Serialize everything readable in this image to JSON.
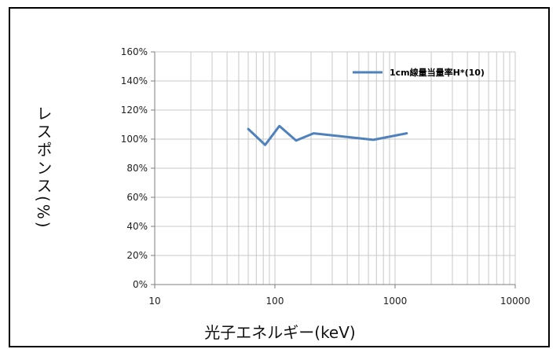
{
  "chart_data": {
    "type": "line",
    "xscale": "log",
    "xlim": [
      10,
      10000
    ],
    "ylim": [
      0,
      160
    ],
    "x_ticks": [
      "10",
      "100",
      "1000",
      "10000"
    ],
    "y_ticks": [
      "0%",
      "20%",
      "40%",
      "60%",
      "80%",
      "100%",
      "120%",
      "140%",
      "160%"
    ],
    "xlabel": "光子エネルギー(keV)",
    "ylabel": "レスポンス(%)",
    "grid": true,
    "legend": "top-right",
    "series": [
      {
        "name": "1cm線量当量率H*(10)",
        "color": "#4f81bd",
        "x": [
          60,
          83,
          109,
          150,
          210,
          660,
          1250
        ],
        "y": [
          107,
          96,
          109,
          99,
          104,
          99.5,
          104
        ]
      }
    ]
  }
}
